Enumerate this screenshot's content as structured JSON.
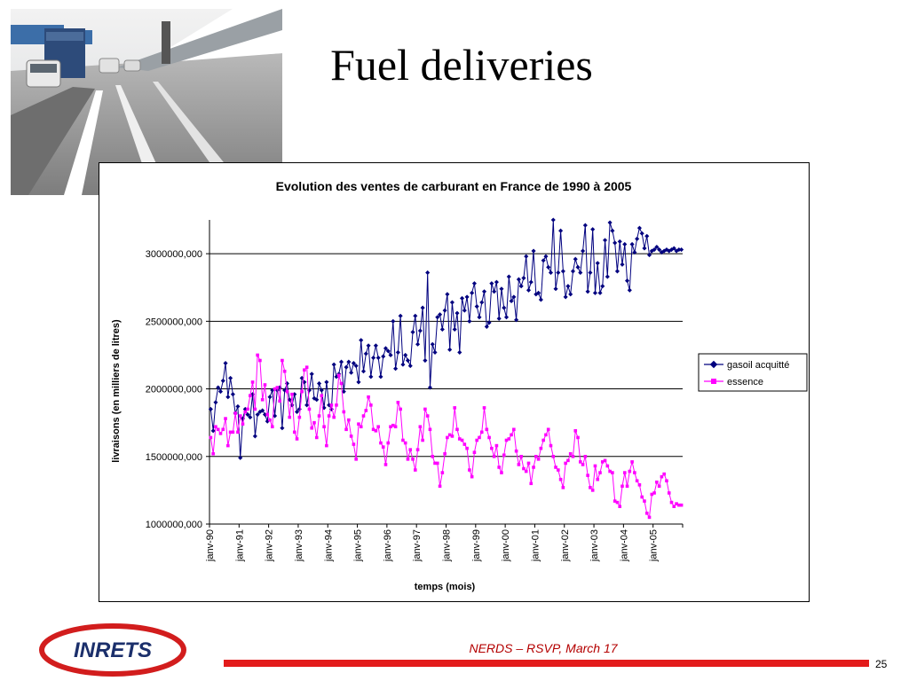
{
  "slide": {
    "title": "Fuel deliveries",
    "footer": "NERDS – RSVP, March 17",
    "page_number": "25",
    "logo_text": "INRETS",
    "accent_color": "#e31b1b"
  },
  "chart_data": {
    "type": "line",
    "title": "Evolution des ventes de carburant en France de 1990 à 2005",
    "xlabel": "temps (mois)",
    "ylabel": "livraisons (en milliers de litres)",
    "ylim": [
      1000000,
      3250000
    ],
    "yticks": [
      1000000,
      1500000,
      2000000,
      2500000,
      3000000
    ],
    "ytick_labels": [
      "1000000,000",
      "1500000,000",
      "2000000,000",
      "2500000,000",
      "3000000,000"
    ],
    "xtick_labels": [
      "janv-90",
      "janv-91",
      "janv-92",
      "janv-93",
      "janv-94",
      "janv-95",
      "janv-96",
      "janv-97",
      "janv-98",
      "janv-99",
      "janv-00",
      "janv-01",
      "janv-02",
      "janv-03",
      "janv-04",
      "janv-05"
    ],
    "months": 192,
    "grid": "horizontal",
    "legend": "right",
    "series": [
      {
        "name": "gasoil acquitté",
        "color": "#00007f",
        "marker": "diamond",
        "values": [
          1850000,
          1690000,
          1900000,
          2010000,
          1980000,
          2060000,
          2190000,
          1940000,
          2080000,
          1960000,
          1820000,
          1870000,
          1490000,
          1780000,
          1850000,
          1810000,
          1790000,
          1960000,
          1650000,
          1810000,
          1830000,
          1840000,
          1810000,
          1760000,
          1940000,
          1990000,
          1800000,
          1990000,
          2010000,
          1710000,
          1990000,
          2040000,
          1920000,
          1880000,
          1960000,
          1830000,
          1850000,
          2080000,
          2050000,
          1880000,
          1990000,
          2110000,
          1930000,
          1920000,
          2040000,
          1990000,
          1860000,
          2050000,
          1880000,
          1850000,
          2180000,
          2090000,
          2110000,
          2200000,
          1980000,
          2160000,
          2200000,
          2120000,
          2190000,
          2170000,
          2050000,
          2360000,
          2130000,
          2260000,
          2320000,
          2090000,
          2230000,
          2320000,
          2230000,
          2090000,
          2240000,
          2300000,
          2280000,
          2250000,
          2500000,
          2150000,
          2270000,
          2540000,
          2180000,
          2250000,
          2210000,
          2170000,
          2420000,
          2540000,
          2330000,
          2430000,
          2600000,
          2210000,
          2860000,
          2010000,
          2330000,
          2270000,
          2530000,
          2550000,
          2440000,
          2580000,
          2700000,
          2290000,
          2640000,
          2440000,
          2560000,
          2270000,
          2670000,
          2580000,
          2680000,
          2500000,
          2710000,
          2780000,
          2610000,
          2530000,
          2640000,
          2720000,
          2460000,
          2490000,
          2780000,
          2720000,
          2790000,
          2520000,
          2740000,
          2600000,
          2530000,
          2830000,
          2650000,
          2680000,
          2510000,
          2810000,
          2760000,
          2820000,
          2980000,
          2730000,
          2790000,
          3020000,
          2700000,
          2710000,
          2660000,
          2950000,
          2980000,
          2900000,
          2860000,
          3250000,
          2740000,
          2860000,
          3170000,
          2870000,
          2680000,
          2760000,
          2700000,
          2870000,
          2960000,
          2900000,
          2860000,
          3020000,
          3210000,
          2720000,
          2860000,
          3180000,
          2710000,
          2930000,
          2710000,
          2760000,
          3100000,
          2830000,
          3230000,
          3170000,
          3080000,
          2870000,
          3090000,
          2920000,
          3070000,
          2800000,
          2730000,
          3070000,
          3010000,
          3110000,
          3190000,
          3150000,
          3040000,
          3130000,
          2990000,
          3020000,
          3030000,
          3050000,
          3030000,
          3010000,
          3020000,
          3030000,
          3020000,
          3030000,
          3040000,
          3020000,
          3030000,
          3030000
        ]
      },
      {
        "name": "essence",
        "color": "#ff00ff",
        "marker": "square",
        "values": [
          1640000,
          1520000,
          1720000,
          1700000,
          1670000,
          1700000,
          1780000,
          1580000,
          1680000,
          1680000,
          1820000,
          1680000,
          1800000,
          1740000,
          1830000,
          1850000,
          1950000,
          2050000,
          1850000,
          2250000,
          2210000,
          1920000,
          2030000,
          1810000,
          1770000,
          1720000,
          2000000,
          2010000,
          1910000,
          2210000,
          2130000,
          1980000,
          1790000,
          1960000,
          1680000,
          1630000,
          1790000,
          1980000,
          2140000,
          2160000,
          1850000,
          1710000,
          1750000,
          1640000,
          1800000,
          1950000,
          1720000,
          1580000,
          1800000,
          1880000,
          1790000,
          1880000,
          2100000,
          2040000,
          1830000,
          1700000,
          1770000,
          1650000,
          1590000,
          1480000,
          1740000,
          1720000,
          1800000,
          1840000,
          1940000,
          1880000,
          1700000,
          1690000,
          1720000,
          1600000,
          1570000,
          1440000,
          1600000,
          1720000,
          1730000,
          1720000,
          1900000,
          1850000,
          1620000,
          1600000,
          1480000,
          1550000,
          1480000,
          1400000,
          1550000,
          1720000,
          1620000,
          1850000,
          1800000,
          1700000,
          1500000,
          1450000,
          1450000,
          1280000,
          1380000,
          1520000,
          1640000,
          1660000,
          1650000,
          1860000,
          1700000,
          1630000,
          1620000,
          1590000,
          1560000,
          1400000,
          1350000,
          1530000,
          1620000,
          1640000,
          1680000,
          1860000,
          1700000,
          1640000,
          1560000,
          1500000,
          1580000,
          1420000,
          1380000,
          1510000,
          1620000,
          1630000,
          1660000,
          1700000,
          1540000,
          1440000,
          1500000,
          1410000,
          1390000,
          1450000,
          1300000,
          1420000,
          1500000,
          1480000,
          1560000,
          1620000,
          1660000,
          1700000,
          1580000,
          1500000,
          1420000,
          1400000,
          1330000,
          1270000,
          1450000,
          1470000,
          1520000,
          1500000,
          1690000,
          1640000,
          1460000,
          1440000,
          1500000,
          1360000,
          1270000,
          1250000,
          1430000,
          1330000,
          1380000,
          1460000,
          1470000,
          1430000,
          1390000,
          1380000,
          1170000,
          1160000,
          1130000,
          1280000,
          1380000,
          1280000,
          1390000,
          1460000,
          1380000,
          1320000,
          1290000,
          1200000,
          1170000,
          1080000,
          1050000,
          1220000,
          1230000,
          1310000,
          1280000,
          1350000,
          1370000,
          1320000,
          1230000,
          1160000,
          1130000,
          1150000,
          1140000,
          1140000
        ]
      }
    ]
  }
}
